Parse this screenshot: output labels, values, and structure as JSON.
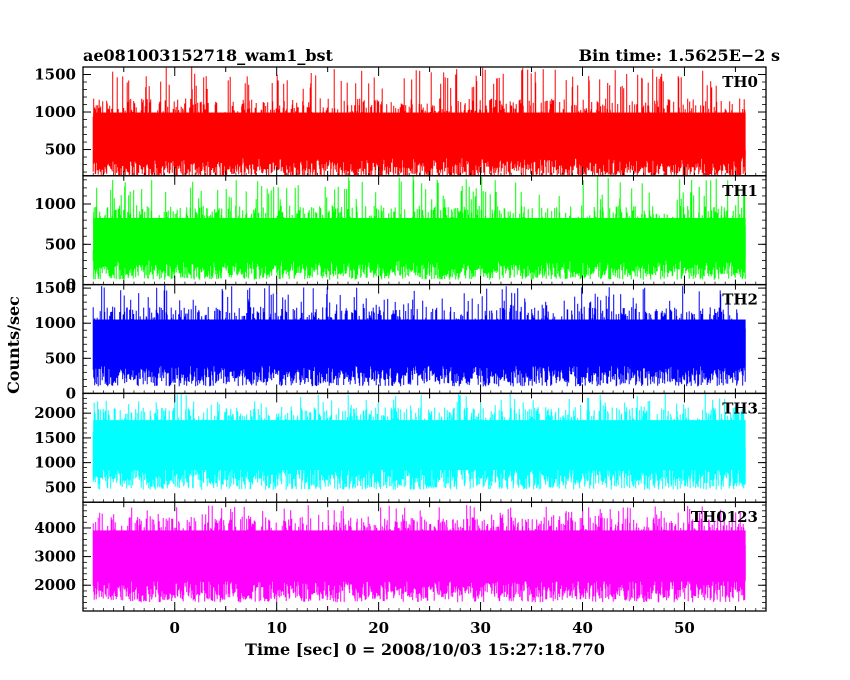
{
  "header": {
    "title": "ae081003152718_wam1_bst",
    "bin_time": "Bin time: 1.5625E−2 s"
  },
  "axes": {
    "ylabel": "Counts/sec",
    "xlabel": "Time [sec] 0 = 2008/10/03 15:27:18.770"
  },
  "chart_data": {
    "type": "line",
    "title": "ae081003152718_wam1_bst",
    "xlabel": "Time [sec] 0 = 2008/10/03 15:27:18.770",
    "ylabel": "Counts/sec",
    "xlim": [
      -9,
      58
    ],
    "x_range_data": [
      -8,
      56
    ],
    "x_ticks": [
      0,
      10,
      20,
      30,
      40,
      50
    ],
    "x_tick_labels": [
      "0",
      "10",
      "20",
      "30",
      "40",
      "50"
    ],
    "bin_time": "1.5625E-2 s",
    "panels": [
      {
        "name": "TH0",
        "color": "#ff0000",
        "ylim": [
          150,
          1600
        ],
        "yticks": [
          500,
          1000,
          1500
        ],
        "ytick_labels": [
          "500",
          "1000",
          "1500"
        ],
        "mean": 580,
        "low": 120,
        "high": 1300,
        "peak_max": 1600
      },
      {
        "name": "TH1",
        "color": "#00ff00",
        "ylim": [
          0,
          1350
        ],
        "yticks": [
          0,
          500,
          1000
        ],
        "ytick_labels": [
          "0",
          "500",
          "1000"
        ],
        "mean": 480,
        "low": 60,
        "high": 1050,
        "peak_max": 1350
      },
      {
        "name": "TH2",
        "color": "#0000ff",
        "ylim": [
          0,
          1550
        ],
        "yticks": [
          0,
          500,
          1000,
          1500
        ],
        "ytick_labels": [
          "0",
          "500",
          "1000",
          "1500"
        ],
        "mean": 650,
        "low": 100,
        "high": 1250,
        "peak_max": 1550
      },
      {
        "name": "TH3",
        "color": "#00ffff",
        "ylim": [
          200,
          2400
        ],
        "yticks": [
          500,
          1000,
          1500,
          2000
        ],
        "ytick_labels": [
          "500",
          "1000",
          "1500",
          "2000"
        ],
        "mean": 1300,
        "low": 450,
        "high": 2050,
        "peak_max": 2400
      },
      {
        "name": "TH0123",
        "color": "#ff00ff",
        "ylim": [
          1100,
          4900
        ],
        "yticks": [
          2000,
          3000,
          4000
        ],
        "ytick_labels": [
          "2000",
          "3000",
          "4000"
        ],
        "mean": 2900,
        "low": 1400,
        "high": 4300,
        "peak_max": 4800
      }
    ]
  }
}
